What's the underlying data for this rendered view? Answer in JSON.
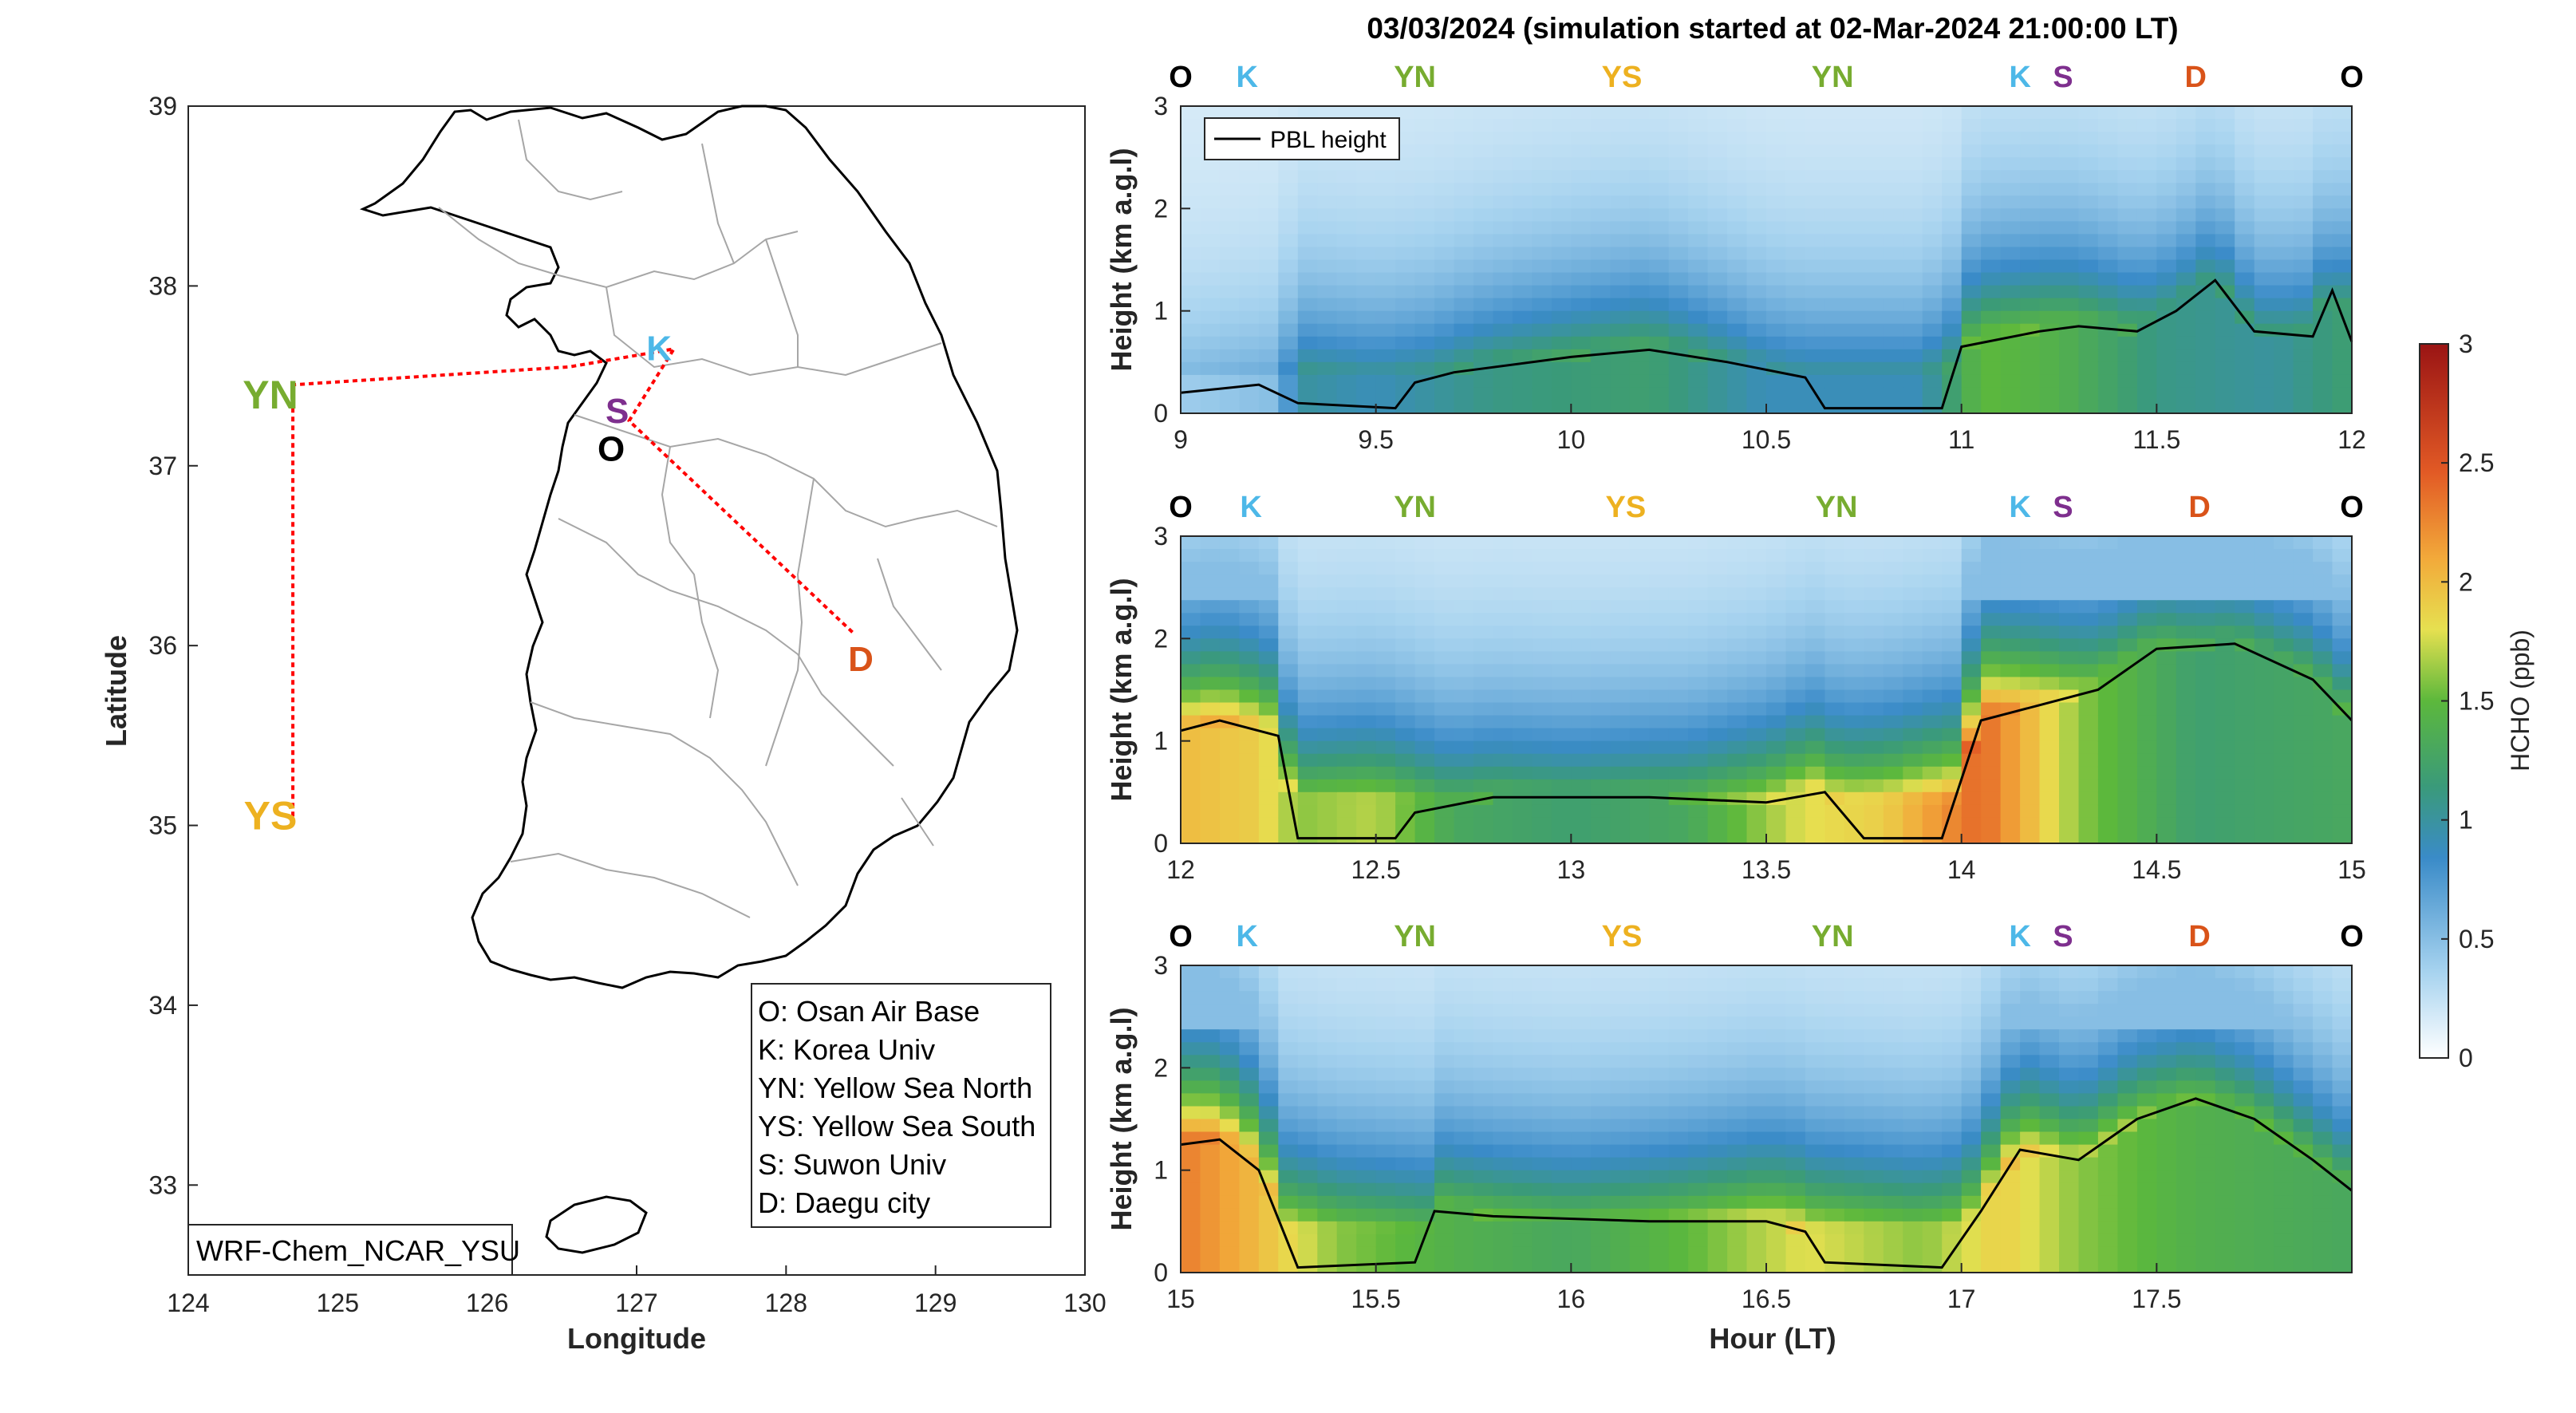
{
  "chart_data": [
    {
      "type": "map",
      "xlabel": "Longitude",
      "ylabel": "Latitude",
      "xlim": [
        124,
        130
      ],
      "ylim": [
        32.5,
        39
      ],
      "xticks": [
        "124",
        "125",
        "126",
        "127",
        "128",
        "129",
        "130"
      ],
      "yticks": [
        "33",
        "34",
        "35",
        "36",
        "37",
        "38",
        "39"
      ],
      "model_label": "WRF-Chem_NCAR_YSU",
      "stations": [
        {
          "code": "K",
          "lon": 127.15,
          "lat": 37.65,
          "color": "#4db8e8"
        },
        {
          "code": "S",
          "lon": 126.87,
          "lat": 37.3,
          "color": "#7e2f8e"
        },
        {
          "code": "O",
          "lon": 126.83,
          "lat": 37.09,
          "color": "#000000"
        },
        {
          "code": "YN",
          "lon": 124.55,
          "lat": 37.38,
          "color": "#77ac30"
        },
        {
          "code": "YS",
          "lon": 124.55,
          "lat": 35.04,
          "color": "#edb120"
        },
        {
          "code": "D",
          "lon": 128.5,
          "lat": 35.92,
          "color": "#d95319"
        }
      ],
      "flight_track": [
        {
          "lon": 124.7,
          "lat": 35.05
        },
        {
          "lon": 124.7,
          "lat": 37.45
        },
        {
          "lon": 126.55,
          "lat": 37.55
        },
        {
          "lon": 127.25,
          "lat": 37.65
        },
        {
          "lon": 126.95,
          "lat": 37.25
        },
        {
          "lon": 128.45,
          "lat": 36.07
        }
      ],
      "legend": [
        "O: Osan Air Base",
        "K: Korea Univ",
        "YN: Yellow Sea North",
        "YS: Yellow Sea South",
        "S: Suwon Univ",
        "D: Daegu city"
      ]
    },
    {
      "type": "heatmap",
      "title": "03/03/2024 (simulation started at 02-Mar-2024 21:00:00 LT)",
      "ylabel": "Height (km a.g.l)",
      "xlabel": "Hour (LT)",
      "series_name": "PBL height",
      "colorbar": {
        "label": "HCHO (ppb)",
        "range": [
          0,
          3
        ],
        "ticks": [
          "0",
          "0.5",
          "1",
          "1.5",
          "2",
          "2.5",
          "3"
        ]
      },
      "panels": [
        {
          "xlim": [
            9,
            12
          ],
          "ylim": [
            0,
            3
          ],
          "xticks": [
            "9",
            "9.5",
            "10",
            "10.5",
            "11",
            "11.5",
            "12"
          ],
          "yticks": [
            "0",
            "1",
            "2",
            "3"
          ],
          "stations": [
            {
              "code": "O",
              "t": 9
            },
            {
              "code": "K",
              "t": 9.17
            },
            {
              "code": "YN",
              "t": 9.6
            },
            {
              "code": "YS",
              "t": 10.13
            },
            {
              "code": "YN",
              "t": 10.67
            },
            {
              "code": "K",
              "t": 11.15
            },
            {
              "code": "S",
              "t": 11.26
            },
            {
              "code": "D",
              "t": 11.6
            },
            {
              "code": "O",
              "t": 12
            }
          ],
          "pbl": [
            [
              9,
              0.2
            ],
            [
              9.2,
              0.28
            ],
            [
              9.3,
              0.1
            ],
            [
              9.55,
              0.05
            ],
            [
              9.6,
              0.3
            ],
            [
              9.7,
              0.4
            ],
            [
              10,
              0.55
            ],
            [
              10.2,
              0.62
            ],
            [
              10.4,
              0.5
            ],
            [
              10.6,
              0.35
            ],
            [
              10.65,
              0.05
            ],
            [
              10.95,
              0.05
            ],
            [
              11,
              0.65
            ],
            [
              11.2,
              0.8
            ],
            [
              11.3,
              0.85
            ],
            [
              11.45,
              0.8
            ],
            [
              11.55,
              1.0
            ],
            [
              11.65,
              1.3
            ],
            [
              11.75,
              0.8
            ],
            [
              11.9,
              0.75
            ],
            [
              11.95,
              1.2
            ],
            [
              12,
              0.7
            ]
          ],
          "hcho": [
            [
              9,
              0.4
            ],
            [
              9.25,
              0.5
            ],
            [
              9.3,
              1.0
            ],
            [
              9.5,
              0.9
            ],
            [
              9.8,
              1.1
            ],
            [
              10.2,
              1.2
            ],
            [
              10.5,
              0.9
            ],
            [
              10.9,
              0.9
            ],
            [
              11.05,
              1.5
            ],
            [
              11.25,
              1.4
            ],
            [
              11.5,
              1.1
            ],
            [
              11.8,
              1.0
            ],
            [
              12,
              1.2
            ]
          ]
        },
        {
          "xlim": [
            12,
            15
          ],
          "ylim": [
            0,
            3
          ],
          "xticks": [
            "12",
            "12.5",
            "13",
            "13.5",
            "14",
            "14.5",
            "15"
          ],
          "yticks": [
            "0",
            "1",
            "2",
            "3"
          ],
          "stations": [
            {
              "code": "O",
              "t": 12
            },
            {
              "code": "K",
              "t": 12.18
            },
            {
              "code": "YN",
              "t": 12.6
            },
            {
              "code": "YS",
              "t": 13.14
            },
            {
              "code": "YN",
              "t": 13.68
            },
            {
              "code": "K",
              "t": 14.15
            },
            {
              "code": "S",
              "t": 14.26
            },
            {
              "code": "D",
              "t": 14.61
            },
            {
              "code": "O",
              "t": 15
            }
          ],
          "pbl": [
            [
              12,
              1.1
            ],
            [
              12.1,
              1.2
            ],
            [
              12.25,
              1.05
            ],
            [
              12.3,
              0.05
            ],
            [
              12.55,
              0.05
            ],
            [
              12.6,
              0.3
            ],
            [
              12.8,
              0.45
            ],
            [
              13.2,
              0.45
            ],
            [
              13.5,
              0.4
            ],
            [
              13.65,
              0.5
            ],
            [
              13.75,
              0.05
            ],
            [
              13.95,
              0.05
            ],
            [
              14.05,
              1.2
            ],
            [
              14.2,
              1.35
            ],
            [
              14.35,
              1.5
            ],
            [
              14.5,
              1.9
            ],
            [
              14.7,
              1.95
            ],
            [
              14.9,
              1.6
            ],
            [
              15,
              1.2
            ]
          ],
          "hcho": [
            [
              12,
              2.0
            ],
            [
              12.2,
              1.9
            ],
            [
              12.3,
              1.6
            ],
            [
              12.5,
              1.7
            ],
            [
              12.7,
              1.3
            ],
            [
              13.0,
              1.2
            ],
            [
              13.3,
              1.3
            ],
            [
              13.6,
              1.8
            ],
            [
              13.8,
              1.9
            ],
            [
              14.05,
              2.4
            ],
            [
              14.3,
              1.6
            ],
            [
              14.6,
              1.2
            ],
            [
              15,
              1.3
            ]
          ]
        },
        {
          "xlim": [
            15,
            18
          ],
          "ylim": [
            0,
            3
          ],
          "xticks": [
            "15",
            "15.5",
            "16",
            "16.5",
            "17",
            "17.5"
          ],
          "yticks": [
            "0",
            "1",
            "2",
            "3"
          ],
          "stations": [
            {
              "code": "O",
              "t": 15
            },
            {
              "code": "K",
              "t": 15.17
            },
            {
              "code": "YN",
              "t": 15.6
            },
            {
              "code": "YS",
              "t": 16.13
            },
            {
              "code": "YN",
              "t": 16.67
            },
            {
              "code": "K",
              "t": 17.15
            },
            {
              "code": "S",
              "t": 17.26
            },
            {
              "code": "D",
              "t": 17.61
            },
            {
              "code": "O",
              "t": 18
            }
          ],
          "pbl": [
            [
              15,
              1.25
            ],
            [
              15.1,
              1.3
            ],
            [
              15.2,
              1.0
            ],
            [
              15.3,
              0.05
            ],
            [
              15.6,
              0.1
            ],
            [
              15.65,
              0.6
            ],
            [
              15.8,
              0.55
            ],
            [
              16.2,
              0.5
            ],
            [
              16.5,
              0.5
            ],
            [
              16.6,
              0.4
            ],
            [
              16.65,
              0.1
            ],
            [
              16.95,
              0.05
            ],
            [
              17.05,
              0.6
            ],
            [
              17.15,
              1.2
            ],
            [
              17.3,
              1.1
            ],
            [
              17.45,
              1.5
            ],
            [
              17.6,
              1.7
            ],
            [
              17.75,
              1.5
            ],
            [
              17.9,
              1.1
            ],
            [
              18,
              0.8
            ]
          ],
          "hcho": [
            [
              15,
              2.3
            ],
            [
              15.2,
              2.0
            ],
            [
              15.4,
              1.6
            ],
            [
              15.7,
              1.4
            ],
            [
              16.0,
              1.3
            ],
            [
              16.3,
              1.5
            ],
            [
              16.6,
              1.8
            ],
            [
              16.9,
              1.6
            ],
            [
              17.1,
              1.9
            ],
            [
              17.3,
              1.6
            ],
            [
              17.6,
              1.4
            ],
            [
              18,
              1.3
            ]
          ]
        }
      ]
    }
  ]
}
